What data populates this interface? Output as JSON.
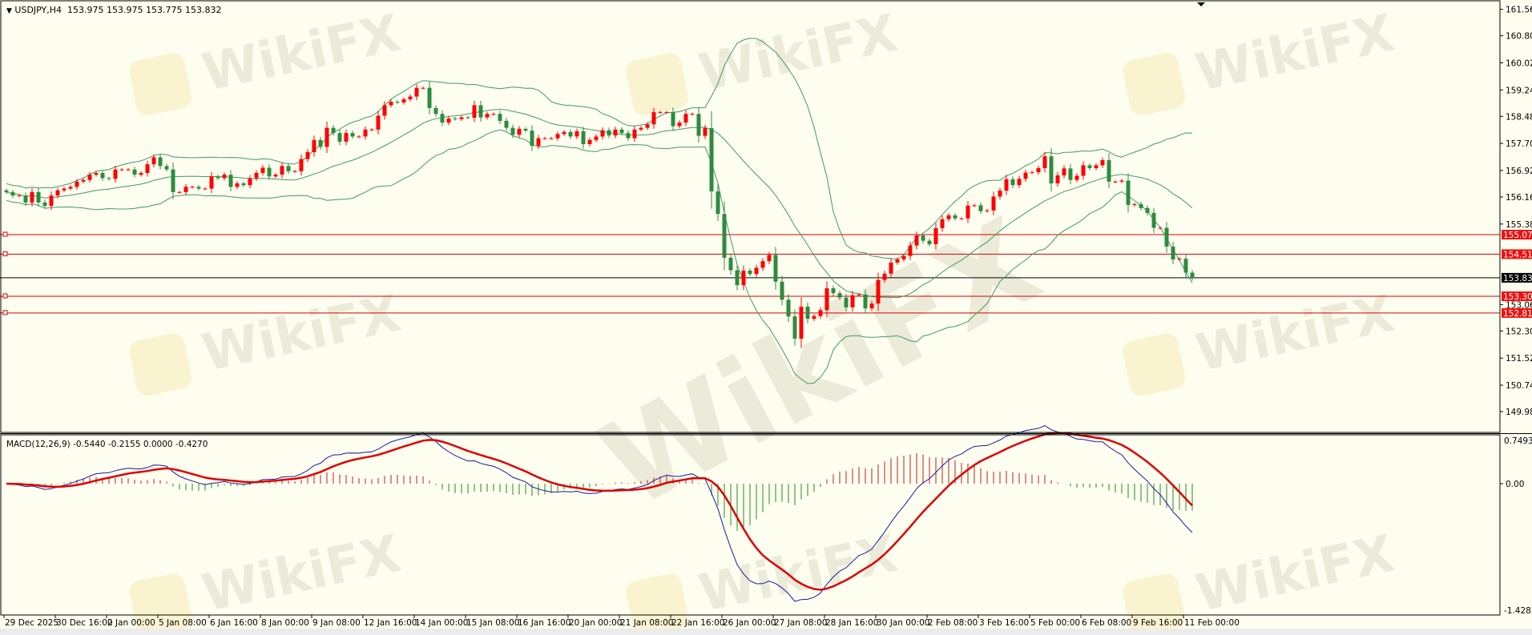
{
  "header": {
    "symbol_line": "USDJPY,H4  153.975 153.975 153.775 153.832",
    "macd_line": "MACD(12,26,9) -0.5440 -0.2155 0.0000 -0.4270"
  },
  "watermark_text": "WikiFX",
  "colors": {
    "background": "#fefef0",
    "bull_candle": "#ff0000",
    "bear_candle": "#2e8b3e",
    "bands": "#3f9a6a",
    "macd_main": "#1a1a9a",
    "macd_signal": "#dd0000",
    "hist_positive": "#b22222",
    "hist_negative": "#228b22",
    "level_line": "#d40000",
    "price_line": "#000000"
  },
  "chart_data": {
    "type": "candlestick",
    "symbol": "USDJPY",
    "timeframe": "H4",
    "current": {
      "open": 153.975,
      "high": 153.975,
      "low": 153.775,
      "close": 153.832
    },
    "ylim": [
      149.38,
      161.83
    ],
    "price_ticks": [
      "161.560",
      "160.800",
      "160.020",
      "159.240",
      "158.480",
      "157.700",
      "156.920",
      "156.160",
      "155.380",
      "153.060",
      "152.300",
      "151.520",
      "150.740",
      "149.980"
    ],
    "levels": [
      {
        "price": "155.074",
        "kind": "resistance"
      },
      {
        "price": "154.512",
        "kind": "resistance"
      },
      {
        "price": "153.300",
        "kind": "support"
      },
      {
        "price": "152.818",
        "kind": "support"
      }
    ],
    "current_price_label": "153.832",
    "time_labels": [
      "29 Dec 2025",
      "30 Dec 16:00",
      "2 Jan 00:00",
      "5 Jan 08:00",
      "6 Jan 16:00",
      "8 Jan 00:00",
      "9 Jan 08:00",
      "12 Jan 16:00",
      "14 Jan 00:00",
      "15 Jan 08:00",
      "16 Jan 16:00",
      "20 Jan 00:00",
      "21 Jan 08:00",
      "22 Jan 16:00",
      "26 Jan 00:00",
      "27 Jan 08:00",
      "28 Jan 16:00",
      "30 Jan 00:00",
      "2 Feb 08:00",
      "3 Feb 16:00",
      "5 Feb 00:00",
      "6 Feb 08:00",
      "9 Feb 16:00",
      "11 Feb 00:00"
    ],
    "closes": [
      156.3,
      156.2,
      156.2,
      156.0,
      156.3,
      156.0,
      155.9,
      156.2,
      156.35,
      156.4,
      156.45,
      156.6,
      156.65,
      156.8,
      156.85,
      156.7,
      156.68,
      156.95,
      156.95,
      156.95,
      156.8,
      156.85,
      157.1,
      157.3,
      157.05,
      156.95,
      156.3,
      156.3,
      156.45,
      156.45,
      156.4,
      156.4,
      156.75,
      156.7,
      156.8,
      156.45,
      156.55,
      156.5,
      156.7,
      156.85,
      157.0,
      156.75,
      156.8,
      157.05,
      156.9,
      156.9,
      157.25,
      157.45,
      157.8,
      157.6,
      158.15,
      158.0,
      157.75,
      158.0,
      157.9,
      157.9,
      158.1,
      158.1,
      158.5,
      158.8,
      158.9,
      158.88,
      158.97,
      159.05,
      159.3,
      159.3,
      158.72,
      158.55,
      158.3,
      158.42,
      158.4,
      158.45,
      158.44,
      158.8,
      158.45,
      158.55,
      158.55,
      158.35,
      158.15,
      157.95,
      158.12,
      158.07,
      157.63,
      157.85,
      157.85,
      157.85,
      157.97,
      158.03,
      157.9,
      158.05,
      157.68,
      157.8,
      157.9,
      158.08,
      157.93,
      158.1,
      158.0,
      157.85,
      158.1,
      158.15,
      158.25,
      158.6,
      158.6,
      158.6,
      158.2,
      158.3,
      158.55,
      158.55,
      157.92,
      158.14,
      156.32,
      155.67,
      154.41,
      154.05,
      153.62,
      154.04,
      153.94,
      154.12,
      154.31,
      154.49,
      153.72,
      153.2,
      152.72,
      152.08,
      153.0,
      152.65,
      152.73,
      152.9,
      153.53,
      153.39,
      153.26,
      152.98,
      153.33,
      153.35,
      152.95,
      153.09,
      153.77,
      153.95,
      154.27,
      154.36,
      154.46,
      154.76,
      155.05,
      154.9,
      154.8,
      155.26,
      155.52,
      155.63,
      155.54,
      155.54,
      155.91,
      155.92,
      155.75,
      155.77,
      156.17,
      156.34,
      156.67,
      156.5,
      156.68,
      156.86,
      156.87,
      156.99,
      157.33,
      156.55,
      156.78,
      156.98,
      156.65,
      156.77,
      157.07,
      156.99,
      157.07,
      157.22,
      156.6,
      156.6,
      156.63,
      155.93,
      155.95,
      155.84,
      155.7,
      155.27,
      155.27,
      154.73,
      154.36,
      154.38,
      153.98,
      153.832
    ],
    "indicators": {
      "bollinger": {
        "period": 20,
        "deviation": 2
      },
      "macd": {
        "fast": 12,
        "slow": 26,
        "signal": 9,
        "ylim": [
          -1.474,
          0.548
        ],
        "ticks": [
          "0.7493",
          "0.00",
          "-1.4282"
        ]
      }
    },
    "grid": false
  }
}
